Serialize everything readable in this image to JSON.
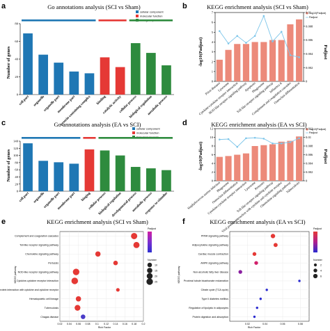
{
  "panels": {
    "a": "a",
    "b": "b",
    "c": "c",
    "d": "d",
    "e": "e",
    "f": "f"
  },
  "legend_go": [
    "cellular component",
    "molecular function",
    "biological process"
  ],
  "legend_kegg": [
    "-log10(Padjust)",
    "Padjust"
  ],
  "colors": {
    "cc": "#1f77b4",
    "mf": "#e53935",
    "bp": "#2e8b3e",
    "kegg_bar": "#ec8a7a",
    "kegg_line": "#7ec6ea"
  },
  "chart_data": [
    {
      "id": "a",
      "type": "bar",
      "title": "Go annotations analysis (SCI vs Sham)",
      "ylabel": "Number of genes",
      "ylim": [
        0,
        80
      ],
      "yticks": [
        0,
        20,
        40,
        60,
        80
      ],
      "categories": [
        "cell part",
        "organelle",
        "organelle part",
        "membrane part",
        "protein-containing complex",
        "binding",
        "catalytic activity",
        "cellular process",
        "biological regulation",
        "metabolic process"
      ],
      "values": [
        69,
        45,
        36,
        26,
        24,
        42,
        31,
        58,
        47,
        33
      ],
      "groups": [
        "cc",
        "cc",
        "cc",
        "cc",
        "cc",
        "mf",
        "mf",
        "bp",
        "bp",
        "bp"
      ]
    },
    {
      "id": "b",
      "type": "bar",
      "title": "KEGG enrichment analysis (SCI vs Sham)",
      "ylabel": "-log10(Padjust)",
      "y2label": "Padjust",
      "categories": [
        "Prion diseases",
        "Lysosome",
        "Cytokine-cytokine receptor interaction",
        "NOD-like receptor signaling pathway",
        "Apoptosis",
        "Phagosome",
        "Toll-like receptor signaling pathway",
        "Influenza A",
        "Complement and coagulation cascades",
        "Osteoclast differentiation"
      ],
      "values": [
        2.2,
        3.2,
        3.8,
        3.8,
        4.0,
        4.0,
        4.2,
        4.2,
        5.8,
        6.3
      ],
      "padjust": [
        0.0073,
        0.0055,
        0.0066,
        0.0056,
        0.0066,
        0.0095,
        0.0058,
        0.0072,
        0.0038,
        0.0035
      ],
      "ylim": [
        0,
        7
      ],
      "y2lim": [
        0,
        0.01
      ]
    },
    {
      "id": "c",
      "type": "bar",
      "title": "Go annotations analysis (EA vs SCI)",
      "ylabel": "Number of genes",
      "ylim": [
        0,
        140
      ],
      "yticks": [
        0,
        20,
        40,
        60,
        80,
        100,
        120,
        140
      ],
      "categories": [
        "cell part",
        "organelle",
        "organelle part",
        "membrane part",
        "binging",
        "cellular process",
        "biological regulation",
        "developmental process",
        "metabolic process",
        "response to stimulus"
      ],
      "values": [
        134,
        85,
        81,
        77,
        117,
        114,
        100,
        68,
        64,
        59
      ],
      "groups": [
        "cc",
        "cc",
        "cc",
        "cc",
        "mf",
        "bp",
        "bp",
        "bp",
        "bp",
        "bp"
      ]
    },
    {
      "id": "d",
      "type": "bar",
      "title": "KEGG enrichment analysis (EA vs SCI)",
      "ylabel": "-log10(Padjust)",
      "y2label": "Padjust",
      "categories": [
        "Staphylococcus aureus infection",
        "Phagosome",
        "Osteoclast differentiation",
        "Cytokine-cytokine receptor interaction",
        "Lysosome",
        "Pertussis",
        "Toll-like receptor signaling pathway",
        "Viral protein interaction with cytokine and cytokine receptor",
        "Chemokine signaling pathway",
        "Tuberculosis"
      ],
      "values": [
        5.5,
        5.7,
        6.0,
        6.3,
        8.0,
        8.2,
        8.4,
        9.0,
        9.2,
        10.2
      ],
      "padjust": [
        0.0095,
        0.0096,
        0.0078,
        0.0098,
        0.0099,
        0.0097,
        0.0086,
        0.0086,
        0.0089,
        0.0098
      ],
      "ylim": [
        0,
        12
      ],
      "y2lim": [
        0,
        0.012
      ]
    },
    {
      "id": "e",
      "type": "scatter",
      "title": "KEGG enrichment analysis (SCI vs Sham)",
      "xlabel": "Rich Factor",
      "ylabel": "KEGG pathway",
      "legend_size_title": "Number",
      "legend_color_title": "Padjust",
      "size_legend_values": [
        10,
        15,
        20,
        25
      ],
      "xticks": [
        0.02,
        0.04,
        0.06,
        0.08,
        0.1,
        0.12,
        0.14,
        0.16,
        0.18,
        0.2
      ],
      "xlim": [
        0.02,
        0.2
      ],
      "categories": [
        "Complement and coagulation cascades",
        "Toll-like receptor signaling pathway",
        "Chemokine signaling pathway",
        "Pertussis",
        "NOD-like receptor signaling pathway",
        "Cytokine-cytokine receptor interaction",
        "Viral protein interaction with cytokine and cytokine receptor",
        "Hematopoietic cell lineage",
        "Tuberculosis",
        "Chagas disease"
      ],
      "x": [
        0.18,
        0.185,
        0.102,
        0.14,
        0.055,
        0.052,
        0.145,
        0.06,
        0.058,
        0.07
      ],
      "number": [
        23,
        22,
        15,
        10,
        25,
        26,
        5,
        15,
        19,
        10
      ],
      "color": [
        "#e53935",
        "#e53935",
        "#e53935",
        "#e53935",
        "#e53935",
        "#e53935",
        "#e53935",
        "#e53935",
        "#e53935",
        "#4a3cc8"
      ]
    },
    {
      "id": "f",
      "type": "scatter",
      "title": "KEGG enrichment analysis (EA vs SCI)",
      "xlabel": "Rich Factor",
      "ylabel": "KEGG pathway",
      "legend_size_title": "Number",
      "legend_color_title": "Padjust",
      "size_legend_values": [
        2,
        4,
        6
      ],
      "xticks": [
        0.02,
        0.04,
        0.06,
        0.08
      ],
      "xlim": [
        0.0,
        0.09
      ],
      "categories": [
        "PPAR signaling pathway",
        "Adipocytokine signaling pathway",
        "Cardiac muscle contraction",
        "AMPK signaling pathway",
        "Non-alcoholic fatty liver disease",
        "Proximal tubule bicarbonate reclamation",
        "Citrate cycle (TCA cycle)",
        "Type II diabetes mellitus",
        "Regulation of lipolysis in adipocytes",
        "Protein digestion and absorption"
      ],
      "x": [
        0.049,
        0.052,
        0.028,
        0.03,
        0.012,
        0.079,
        0.042,
        0.035,
        0.031,
        0.028
      ],
      "number": [
        6,
        5,
        4,
        4,
        4,
        1,
        1,
        1,
        1,
        1
      ],
      "color": [
        "#e53935",
        "#e53935",
        "#e53935",
        "#d1206b",
        "#8a1fa0",
        "#2a2ad0",
        "#2a2ad0",
        "#2a2ad0",
        "#2a2ad0",
        "#2a2ad0"
      ]
    }
  ]
}
